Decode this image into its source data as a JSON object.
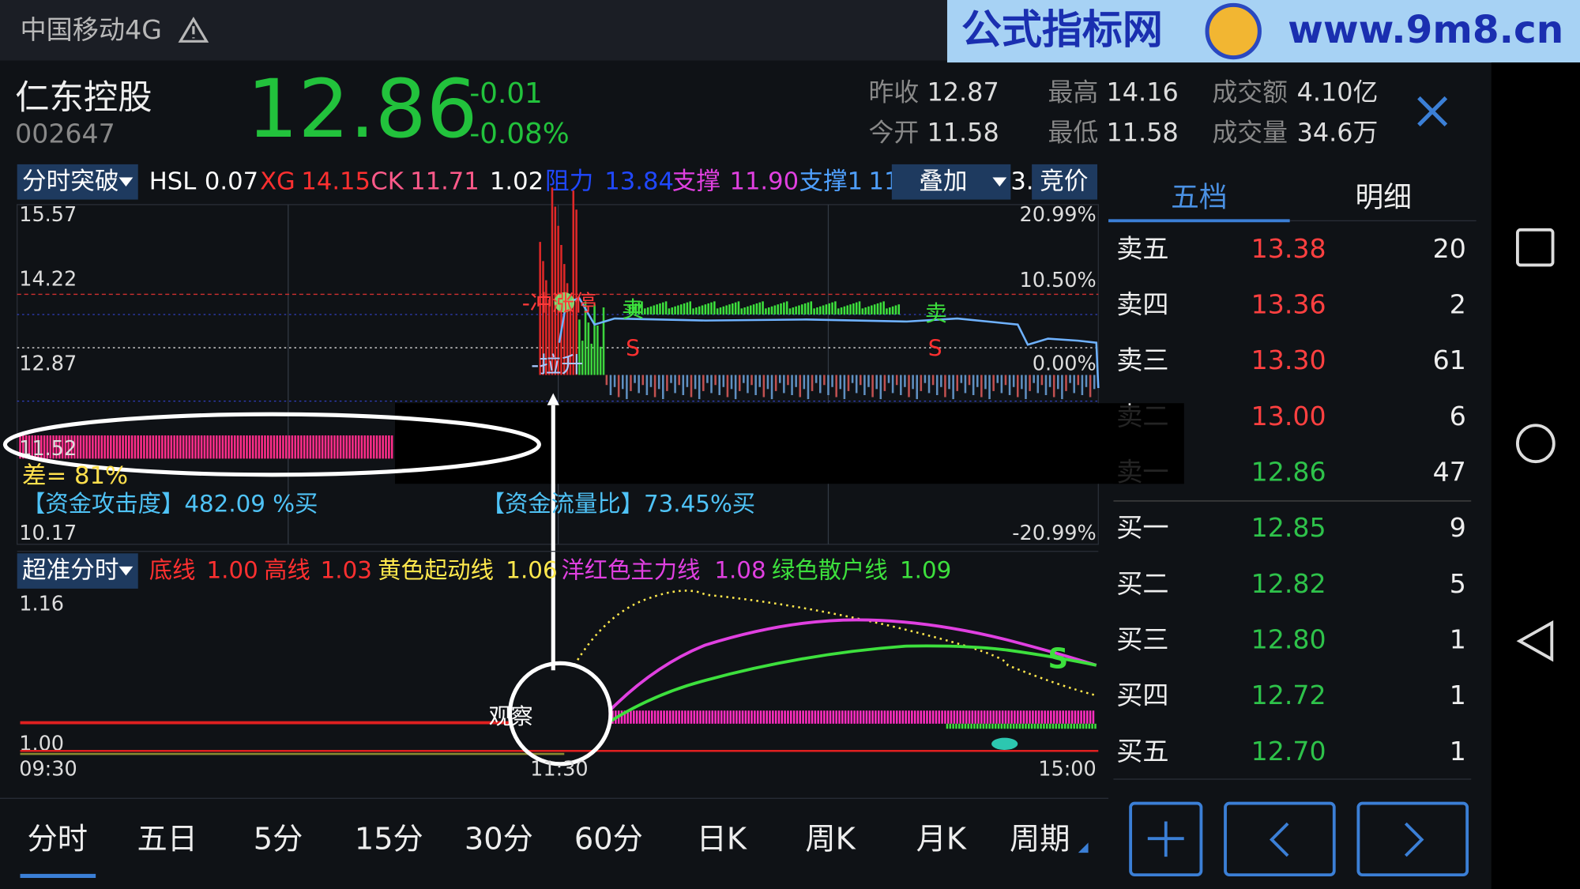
{
  "status_bar": {
    "carrier": "中国移动4G"
  },
  "watermark": {
    "title": "公式指标网",
    "url": "www.9m8.cn"
  },
  "stock": {
    "name": "仁东控股",
    "code": "002647",
    "price": "12.86",
    "change": "-0.01",
    "change_pct": "-0.08%"
  },
  "stats": [
    {
      "label": "昨收",
      "value": "12.87"
    },
    {
      "label": "今开",
      "value": "11.58"
    },
    {
      "label": "最高",
      "value": "14.16"
    },
    {
      "label": "最低",
      "value": "11.58"
    },
    {
      "label": "成交额",
      "value": "4.10亿"
    },
    {
      "label": "成交量",
      "value": "34.6万"
    }
  ],
  "indicator_bar": {
    "selector": "分时突破",
    "hsl_label": "HSL",
    "hsl": "0.07",
    "xg_label": "XG",
    "xg": "14.15",
    "ck_label": "CK",
    "ck": "11.71",
    "extra": "1.02",
    "resist_label": "阻力",
    "resist": "13.84",
    "support_label": "支撑",
    "support": "11.90",
    "support1_label": "支撑1",
    "support1": "11",
    "overlay": "叠加",
    "overlay_extra": "3.",
    "auction": "竞价"
  },
  "main_chart": {
    "left_axis": [
      "15.57",
      "14.22",
      "12.87",
      "11.52",
      "10.17"
    ],
    "right_axis": [
      "20.99%",
      "10.50%",
      "0.00%",
      "-20.99%"
    ],
    "annotations": {
      "limit_up": "-冲涨停",
      "pull_up": "-拉升",
      "sell1": "卖",
      "sell2": "卖",
      "s1": "S",
      "s2": "S"
    },
    "diff": "差= 81%",
    "attack": "【资金攻击度】482.09 %买",
    "flow": "【资金流量比】73.45%买"
  },
  "sub_chart": {
    "selector": "超准分时",
    "legend": [
      {
        "label": "底线",
        "value": "1.00"
      },
      {
        "label": "高线",
        "value": "1.03"
      },
      {
        "label": "黄色起动线",
        "value": "1.06"
      },
      {
        "label": "洋红色主力线",
        "value": "1.08"
      },
      {
        "label": "绿色散户线",
        "value": "1.09"
      }
    ],
    "axis": [
      "1.16",
      "1.00"
    ],
    "times": [
      "09:30",
      "11:30",
      "15:00"
    ],
    "observe": "观察",
    "s": "S"
  },
  "order_book": {
    "tabs": [
      "五档",
      "明细"
    ],
    "rows": [
      {
        "label": "卖五",
        "price": "13.38",
        "volume": "20"
      },
      {
        "label": "卖四",
        "price": "13.36",
        "volume": "2"
      },
      {
        "label": "卖三",
        "price": "13.30",
        "volume": "61"
      },
      {
        "label": "卖二",
        "price": "13.00",
        "volume": "6"
      },
      {
        "label": "卖一",
        "price": "12.86",
        "volume": "47"
      },
      {
        "label": "买一",
        "price": "12.85",
        "volume": "9"
      },
      {
        "label": "买二",
        "price": "12.82",
        "volume": "5"
      },
      {
        "label": "买三",
        "price": "12.80",
        "volume": "1"
      },
      {
        "label": "买四",
        "price": "12.72",
        "volume": "1"
      },
      {
        "label": "买五",
        "price": "12.70",
        "volume": "1"
      }
    ]
  },
  "bottom_tabs": [
    "分时",
    "五日",
    "5分",
    "15分",
    "30分",
    "60分",
    "日K",
    "周K",
    "月K",
    "周期"
  ]
}
